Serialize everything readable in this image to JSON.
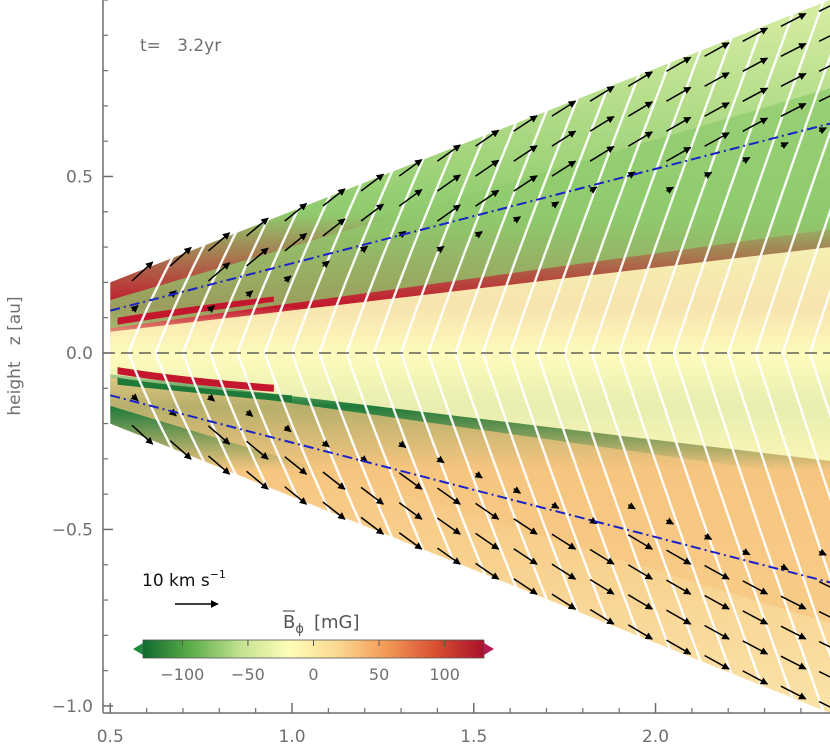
{
  "chart_data": {
    "type": "heatmap",
    "annotation_time": "t=   3.2yr",
    "ylabel": "height   z [au]",
    "xlabel": "",
    "xlim": [
      0.48,
      2.48
    ],
    "ylim": [
      -1.02,
      1.0
    ],
    "xticks": [
      0.5,
      1.0,
      1.5,
      2.0
    ],
    "xtick_labels": [
      "0.5",
      "1.0",
      "1.5",
      "2.0"
    ],
    "yticks": [
      -1.0,
      -0.5,
      0.0,
      0.5
    ],
    "ytick_labels": [
      "−1.0",
      "−0.5",
      "0.0",
      "0.5"
    ],
    "midplane_line": {
      "y": 0.0,
      "style": "dashed",
      "color": "#444444"
    },
    "surface_lines": {
      "color": "#1a22c8",
      "style": "dash-dot",
      "upper": [
        [
          0.5,
          0.12
        ],
        [
          2.48,
          0.65
        ]
      ],
      "lower": [
        [
          0.5,
          -0.12
        ],
        [
          2.48,
          -0.65
        ]
      ]
    },
    "wedge_boundary": {
      "x": [
        0.5,
        2.48
      ],
      "top": [
        0.2,
        1.0
      ],
      "bottom": [
        -0.2,
        -1.02
      ]
    },
    "velocity_reference": {
      "label": "10 km s",
      "exponent": "−1",
      "length_km_s": 10
    },
    "colorbar": {
      "label_main": "B",
      "label_sub": "ϕ",
      "label_unit": "[mG]",
      "range": [
        -130,
        130
      ],
      "ticks": [
        -100,
        -50,
        0,
        50,
        100
      ],
      "tick_labels": [
        "−100",
        "−50",
        "0",
        "50",
        "100"
      ],
      "colors": [
        "#0f6a2e",
        "#5eae4a",
        "#c3e290",
        "#fefdb8",
        "#fbd890",
        "#f29a56",
        "#d95032",
        "#a8102a"
      ],
      "under_color": "#1e8a3c",
      "over_color": "#b51a56"
    },
    "field_color_bands": [
      {
        "region": "upper atmosphere",
        "value": -20,
        "color": "#d8eea4"
      },
      {
        "region": "upper layer",
        "value": -60,
        "color": "#8fcb6e"
      },
      {
        "region": "upper current sheet",
        "value": 130,
        "color": "#c4162c"
      },
      {
        "region": "midplane",
        "value": 5,
        "color": "#fdfbbd"
      },
      {
        "region": "lower current sheet",
        "value": -120,
        "color": "#1f7a3a"
      },
      {
        "region": "lower layer",
        "value": 40,
        "color": "#f6c680"
      },
      {
        "region": "lower atmosphere",
        "value": 25,
        "color": "#fbe3a8"
      }
    ],
    "colors": {
      "field_lines": "#ffffff",
      "velocity_arrows": "#000000",
      "axes": "#6e6e6e"
    }
  }
}
